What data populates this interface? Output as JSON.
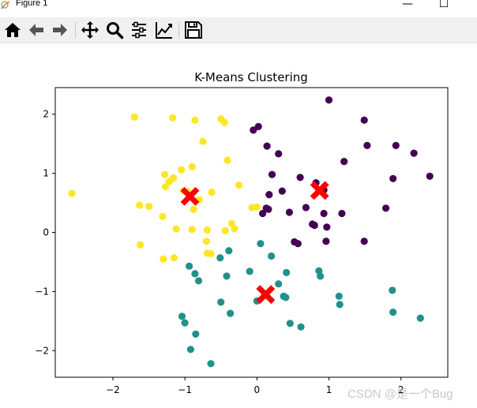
{
  "window": {
    "title": "Figure 1",
    "minimize_icon": "minimize-icon",
    "maximize_icon": "maximize-icon",
    "close_icon": "close-icon"
  },
  "toolbar": {
    "tools": [
      {
        "id": "home",
        "icon": "home-icon"
      },
      {
        "id": "back",
        "icon": "back-arrow-icon"
      },
      {
        "id": "forward",
        "icon": "forward-arrow-icon"
      },
      {
        "id": "pan",
        "icon": "pan-move-icon"
      },
      {
        "id": "zoom",
        "icon": "zoom-magnifier-icon"
      },
      {
        "id": "subplots",
        "icon": "configure-subplots-icon"
      },
      {
        "id": "edit",
        "icon": "edit-axes-icon"
      },
      {
        "id": "save",
        "icon": "save-floppy-icon"
      }
    ]
  },
  "watermark": "CSDN @是一个Bug",
  "chart_data": {
    "type": "scatter",
    "title": "K-Means Clustering",
    "xlabel": "",
    "ylabel": "",
    "xlim": [
      -2.8,
      2.65
    ],
    "ylim": [
      -2.45,
      2.45
    ],
    "xticks": [
      -2,
      -1,
      0,
      1,
      2
    ],
    "yticks": [
      -2,
      -1,
      0,
      1,
      2
    ],
    "xtick_labels": [
      "−2",
      "−1",
      "0",
      "1",
      "2"
    ],
    "ytick_labels": [
      "−2",
      "−1",
      "0",
      "1",
      "2"
    ],
    "grid": false,
    "colors": {
      "cluster_purple": "#440154",
      "cluster_teal": "#21918c",
      "cluster_yellow": "#fde725",
      "centroid": "#ff0000"
    },
    "series": [
      {
        "color_key": "cluster_yellow",
        "points": [
          [
            -2.57,
            0.66
          ],
          [
            -1.7,
            1.95
          ],
          [
            -1.17,
            1.94
          ],
          [
            -0.86,
            1.9
          ],
          [
            -0.5,
            1.92
          ],
          [
            -0.45,
            1.86
          ],
          [
            -0.75,
            1.54
          ],
          [
            -0.41,
            1.22
          ],
          [
            -1.05,
            1.06
          ],
          [
            -0.9,
            1.11
          ],
          [
            -1.28,
            0.98
          ],
          [
            -1.16,
            0.92
          ],
          [
            -1.22,
            0.86
          ],
          [
            -1.27,
            0.77
          ],
          [
            -0.25,
            0.8
          ],
          [
            -1.02,
            0.7
          ],
          [
            -0.96,
            0.69
          ],
          [
            -0.63,
            0.68
          ],
          [
            -0.8,
            0.55
          ],
          [
            -1.63,
            0.46
          ],
          [
            -1.5,
            0.44
          ],
          [
            -0.88,
            0.39
          ],
          [
            -0.07,
            0.42
          ],
          [
            0.0,
            0.43
          ],
          [
            -1.31,
            0.27
          ],
          [
            -0.35,
            0.15
          ],
          [
            -0.31,
            0.06
          ],
          [
            -1.12,
            0.06
          ],
          [
            -0.9,
            0.05
          ],
          [
            -0.69,
            0.04
          ],
          [
            -0.44,
            0.03
          ],
          [
            -0.7,
            -0.15
          ],
          [
            -1.62,
            -0.21
          ],
          [
            -0.69,
            -0.35
          ],
          [
            -0.64,
            -0.36
          ],
          [
            -1.3,
            -0.45
          ],
          [
            -1.15,
            -0.43
          ]
        ]
      },
      {
        "color_key": "cluster_purple",
        "points": [
          [
            1.0,
            2.24
          ],
          [
            1.49,
            1.9
          ],
          [
            0.02,
            1.79
          ],
          [
            -0.05,
            1.73
          ],
          [
            1.53,
            1.47
          ],
          [
            1.93,
            1.47
          ],
          [
            0.14,
            1.46
          ],
          [
            0.3,
            1.33
          ],
          [
            2.18,
            1.34
          ],
          [
            1.21,
            1.2
          ],
          [
            0.21,
            0.98
          ],
          [
            0.6,
            0.93
          ],
          [
            0.82,
            0.84
          ],
          [
            2.4,
            0.95
          ],
          [
            1.89,
            0.91
          ],
          [
            0.35,
            0.7
          ],
          [
            0.17,
            0.64
          ],
          [
            0.93,
            0.72
          ],
          [
            0.13,
            0.41
          ],
          [
            0.16,
            0.39
          ],
          [
            0.68,
            0.42
          ],
          [
            0.08,
            0.32
          ],
          [
            0.45,
            0.34
          ],
          [
            0.93,
            0.32
          ],
          [
            1.18,
            0.32
          ],
          [
            1.79,
            0.41
          ],
          [
            0.77,
            0.14
          ],
          [
            0.8,
            0.12
          ],
          [
            0.97,
            0.09
          ],
          [
            0.52,
            -0.16
          ],
          [
            0.57,
            -0.19
          ],
          [
            0.96,
            -0.15
          ],
          [
            1.49,
            -0.15
          ]
        ]
      },
      {
        "color_key": "cluster_teal",
        "points": [
          [
            0.05,
            -0.19
          ],
          [
            0.2,
            -0.4
          ],
          [
            -0.39,
            -0.31
          ],
          [
            -0.51,
            -0.43
          ],
          [
            -0.94,
            -0.57
          ],
          [
            -0.86,
            -0.7
          ],
          [
            -0.1,
            -0.66
          ],
          [
            0.41,
            -0.68
          ],
          [
            0.86,
            -0.65
          ],
          [
            -0.81,
            -0.82
          ],
          [
            -0.42,
            -0.74
          ],
          [
            0.88,
            -0.74
          ],
          [
            0.3,
            -0.87
          ],
          [
            1.88,
            -0.98
          ],
          [
            0.37,
            -1.08
          ],
          [
            0.4,
            -1.1
          ],
          [
            1.14,
            -1.08
          ],
          [
            -0.0,
            -1.16
          ],
          [
            -0.5,
            -1.18
          ],
          [
            1.15,
            -1.22
          ],
          [
            1.89,
            -1.35
          ],
          [
            -0.37,
            -1.37
          ],
          [
            2.27,
            -1.45
          ],
          [
            -1.04,
            -1.42
          ],
          [
            -1.0,
            -1.53
          ],
          [
            0.46,
            -1.54
          ],
          [
            0.61,
            -1.6
          ],
          [
            -0.85,
            -1.72
          ],
          [
            -0.92,
            -1.98
          ],
          [
            -0.64,
            -2.22
          ]
        ]
      }
    ],
    "centroids": [
      [
        -0.93,
        0.61
      ],
      [
        0.87,
        0.71
      ],
      [
        0.12,
        -1.05
      ]
    ]
  }
}
